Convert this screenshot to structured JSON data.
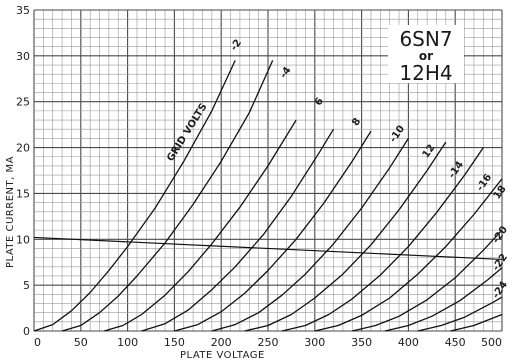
{
  "chart_data": {
    "type": "line",
    "title_lines": [
      "6SN7",
      "or",
      "12H4"
    ],
    "xlabel": "PLATE VOLTAGE",
    "ylabel": "PLATE CURRENT, MA",
    "xlim": [
      0,
      500
    ],
    "ylim": [
      0,
      35
    ],
    "x_ticks": [
      0,
      50,
      100,
      150,
      200,
      250,
      300,
      350,
      400,
      450,
      500
    ],
    "x_tick_labels": [
      "0",
      "50",
      "100",
      "150",
      "200",
      "250",
      "300",
      "350",
      "400",
      "450",
      "500"
    ],
    "y_ticks": [
      0,
      5,
      10,
      15,
      20,
      25,
      30,
      35
    ],
    "y_tick_labels": [
      "0",
      "5",
      "10",
      "15",
      "20",
      "25",
      "30",
      "35"
    ],
    "grid": true,
    "curve_family_label": "GRID VOLTS",
    "series": [
      {
        "name": "0",
        "x": [
          0,
          20,
          40,
          60,
          80,
          100,
          130,
          160,
          190,
          215
        ],
        "y": [
          0,
          0.7,
          2.2,
          4.2,
          6.6,
          9.2,
          13.5,
          18.5,
          24,
          29.5
        ]
      },
      {
        "name": "-2",
        "x": [
          30,
          50,
          70,
          90,
          110,
          140,
          170,
          200,
          230,
          255
        ],
        "y": [
          0,
          0.6,
          2,
          3.8,
          6,
          9.6,
          13.8,
          18.5,
          23.8,
          29.5
        ]
      },
      {
        "name": "-4",
        "x": [
          75,
          95,
          115,
          140,
          165,
          190,
          220,
          250,
          280
        ],
        "y": [
          0,
          0.6,
          1.8,
          3.9,
          6.5,
          9.5,
          13.5,
          18,
          23
        ]
      },
      {
        "name": "-6",
        "x": [
          115,
          140,
          165,
          190,
          215,
          245,
          275,
          305,
          320
        ],
        "y": [
          0,
          0.8,
          2.3,
          4.5,
          7,
          10.5,
          14.7,
          19.5,
          22
        ]
      },
      {
        "name": "-8",
        "x": [
          150,
          175,
          200,
          225,
          250,
          280,
          310,
          340,
          360
        ],
        "y": [
          0,
          0.7,
          2.1,
          4.1,
          6.6,
          10,
          14,
          18.5,
          21.8
        ]
      },
      {
        "name": "-10",
        "x": [
          190,
          215,
          240,
          265,
          290,
          320,
          350,
          380,
          400
        ],
        "y": [
          0,
          0.7,
          2,
          3.9,
          6.2,
          9.5,
          13.4,
          17.8,
          21
        ]
      },
      {
        "name": "-12",
        "x": [
          225,
          250,
          275,
          300,
          330,
          360,
          390,
          420,
          440
        ],
        "y": [
          0,
          0.6,
          1.8,
          3.6,
          6.2,
          9.4,
          13.2,
          17.5,
          20.6
        ]
      },
      {
        "name": "-14",
        "x": [
          265,
          290,
          315,
          340,
          370,
          400,
          430,
          460,
          480
        ],
        "y": [
          0,
          0.6,
          1.8,
          3.5,
          6.1,
          9.2,
          12.9,
          17,
          20
        ]
      },
      {
        "name": "-16",
        "x": [
          300,
          325,
          350,
          380,
          410,
          440,
          470,
          500
        ],
        "y": [
          0,
          0.6,
          1.7,
          3.6,
          6.2,
          9.2,
          12.7,
          16.6
        ]
      },
      {
        "name": "-18",
        "x": [
          340,
          365,
          390,
          420,
          450,
          480,
          500
        ],
        "y": [
          0,
          0.6,
          1.6,
          3.4,
          5.8,
          8.8,
          11
        ]
      },
      {
        "name": "-20",
        "x": [
          375,
          400,
          425,
          455,
          485,
          500
        ],
        "y": [
          0,
          0.6,
          1.6,
          3.3,
          5.6,
          6.9
        ]
      },
      {
        "name": "-22",
        "x": [
          410,
          435,
          460,
          490,
          500
        ],
        "y": [
          0,
          0.6,
          1.5,
          3.1,
          3.7
        ]
      },
      {
        "name": "-24",
        "x": [
          445,
          470,
          500
        ],
        "y": [
          0,
          0.6,
          1.8
        ]
      }
    ],
    "curve_labels": [
      {
        "text": "-2",
        "x": 215,
        "y": 30.5
      },
      {
        "text": "-4",
        "x": 268,
        "y": 27.5
      },
      {
        "text": "6",
        "x": 305,
        "y": 24.5
      },
      {
        "text": "8",
        "x": 345,
        "y": 22.3
      },
      {
        "text": "-10",
        "x": 385,
        "y": 20.5
      },
      {
        "text": "12",
        "x": 420,
        "y": 18.8
      },
      {
        "text": "-14",
        "x": 448,
        "y": 16.6
      },
      {
        "text": "-16",
        "x": 478,
        "y": 15.2
      },
      {
        "text": "18",
        "x": 496,
        "y": 14.3
      },
      {
        "text": "-20",
        "x": 495,
        "y": 9.5
      },
      {
        "text": "-22",
        "x": 495,
        "y": 6.5
      },
      {
        "text": "-24",
        "x": 495,
        "y": 3.5
      }
    ],
    "load_line": {
      "x": [
        0,
        500
      ],
      "y": [
        10.2,
        7.8
      ]
    },
    "colors": {
      "curve": "#111111",
      "grid_minor": "#9a9a9a",
      "grid_major": "#4a4a4a",
      "background": "#ffffff"
    }
  }
}
